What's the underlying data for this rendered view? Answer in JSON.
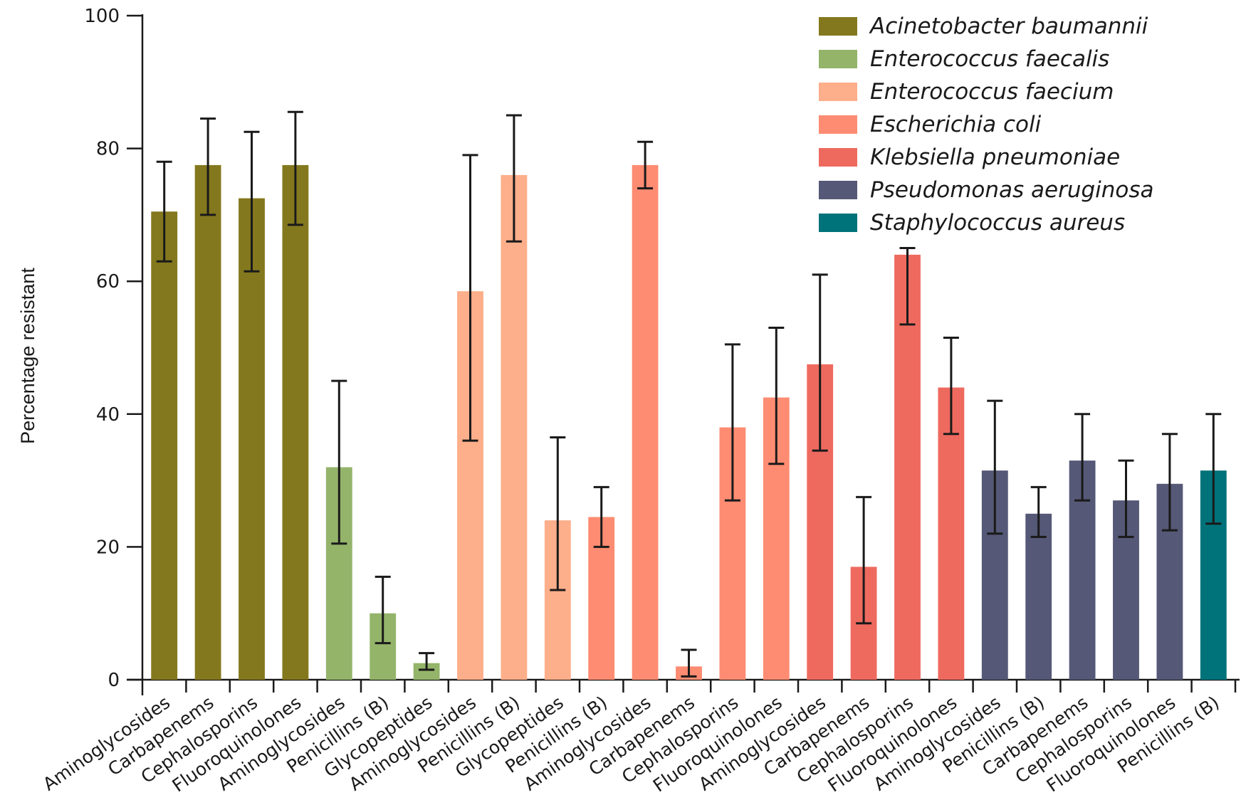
{
  "chart_data": {
    "type": "bar",
    "ylabel": "Percentage resistant",
    "xlabel": "",
    "ylim": [
      0,
      100
    ],
    "yticks": [
      0,
      20,
      40,
      60,
      80,
      100
    ],
    "legend_position": "top-right",
    "error_bars": true,
    "series": [
      {
        "name": "Acinetobacter baumannii",
        "color": "#84781e"
      },
      {
        "name": "Enterococcus faecalis",
        "color": "#94b46a"
      },
      {
        "name": "Enterococcus faecium",
        "color": "#fdae8a"
      },
      {
        "name": "Escherichia coli",
        "color": "#fd8c72"
      },
      {
        "name": "Klebsiella pneumoniae",
        "color": "#ee6a5f"
      },
      {
        "name": "Pseudomonas aeruginosa",
        "color": "#555876"
      },
      {
        "name": "Staphylococcus aureus",
        "color": "#00727a"
      }
    ],
    "bars": [
      {
        "category": "Aminoglycosides",
        "series": 0,
        "value": 70.5,
        "err_low": 63,
        "err_high": 78
      },
      {
        "category": "Carbapenems",
        "series": 0,
        "value": 77.5,
        "err_low": 70,
        "err_high": 84.5
      },
      {
        "category": "Cephalosporins",
        "series": 0,
        "value": 72.5,
        "err_low": 61.5,
        "err_high": 82.5
      },
      {
        "category": "Fluoroquinolones",
        "series": 0,
        "value": 77.5,
        "err_low": 68.5,
        "err_high": 85.5
      },
      {
        "category": "Aminoglycosides",
        "series": 1,
        "value": 32,
        "err_low": 20.5,
        "err_high": 45
      },
      {
        "category": "Penicillins (B)",
        "series": 1,
        "value": 10,
        "err_low": 5.5,
        "err_high": 15.5
      },
      {
        "category": "Glycopeptides",
        "series": 1,
        "value": 2.5,
        "err_low": 1.5,
        "err_high": 4
      },
      {
        "category": "Aminoglycosides",
        "series": 2,
        "value": 58.5,
        "err_low": 36,
        "err_high": 79
      },
      {
        "category": "Penicillins (B)",
        "series": 2,
        "value": 76,
        "err_low": 66,
        "err_high": 85
      },
      {
        "category": "Glycopeptides",
        "series": 2,
        "value": 24,
        "err_low": 13.5,
        "err_high": 36.5
      },
      {
        "category": "Penicillins (B)",
        "series": 3,
        "value": 24.5,
        "err_low": 20,
        "err_high": 29
      },
      {
        "category": "Aminoglycosides",
        "series": 3,
        "value": 77.5,
        "err_low": 74,
        "err_high": 81
      },
      {
        "category": "Carbapenems",
        "series": 3,
        "value": 2,
        "err_low": 0.5,
        "err_high": 4.5
      },
      {
        "category": "Cephalosporins",
        "series": 3,
        "value": 38,
        "err_low": 27,
        "err_high": 50.5
      },
      {
        "category": "Fluoroquinolones",
        "series": 3,
        "value": 42.5,
        "err_low": 32.5,
        "err_high": 53
      },
      {
        "category": "Aminoglycosides",
        "series": 4,
        "value": 47.5,
        "err_low": 34.5,
        "err_high": 61
      },
      {
        "category": "Carbapenems",
        "series": 4,
        "value": 17,
        "err_low": 8.5,
        "err_high": 27.5
      },
      {
        "category": "Cephalosporins",
        "series": 4,
        "value": 64,
        "err_low": 53.5,
        "err_high": 65
      },
      {
        "category": "Fluoroquinolones",
        "series": 4,
        "value": 44,
        "err_low": 37,
        "err_high": 51.5
      },
      {
        "category": "Aminoglycosides",
        "series": 5,
        "value": 31.5,
        "err_low": 22,
        "err_high": 42
      },
      {
        "category": "Penicillins (B)",
        "series": 5,
        "value": 25,
        "err_low": 21.5,
        "err_high": 29
      },
      {
        "category": "Carbapenems",
        "series": 5,
        "value": 33,
        "err_low": 27,
        "err_high": 40
      },
      {
        "category": "Cephalosporins",
        "series": 5,
        "value": 27,
        "err_low": 21.5,
        "err_high": 33
      },
      {
        "category": "Fluoroquinolones",
        "series": 5,
        "value": 29.5,
        "err_low": 22.5,
        "err_high": 37
      },
      {
        "category": "Penicillins (B)",
        "series": 6,
        "value": 31.5,
        "err_low": 23.5,
        "err_high": 40
      }
    ]
  }
}
